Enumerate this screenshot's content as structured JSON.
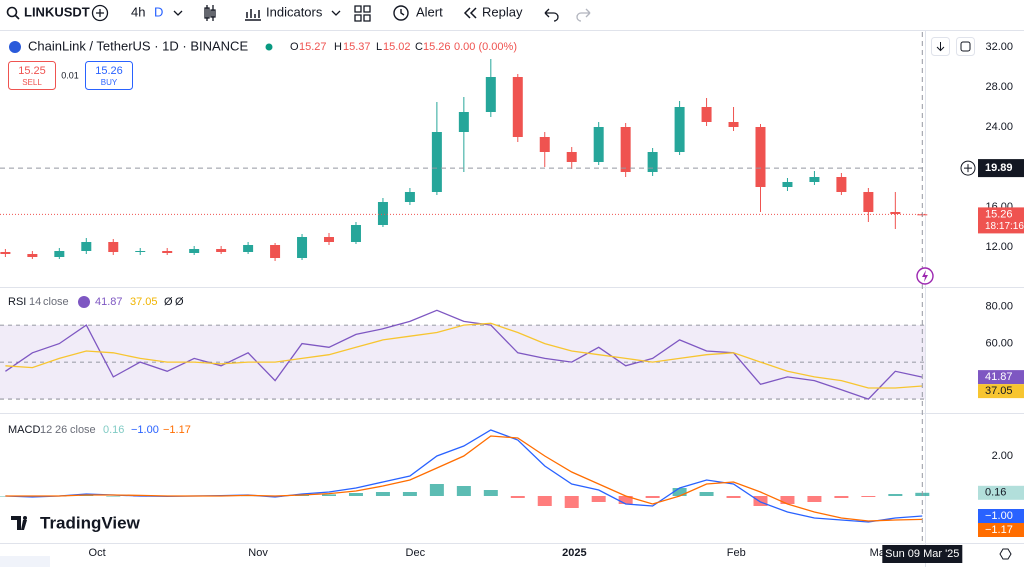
{
  "toolbar": {
    "symbol": "LINKUSDT",
    "interval": "4h",
    "interval_alt": "D",
    "indicators": "Indicators",
    "alert": "Alert",
    "replay": "Replay"
  },
  "legend": {
    "title": "ChainLink / TetherUS · 1D · BINANCE",
    "o": "O",
    "h": "H",
    "l": "L",
    "c": "C",
    "change": "0.00 (0.00%)"
  },
  "trade": {
    "sell_price": "15.25",
    "sell": "SELL",
    "spread": "0.01",
    "buy_price": "15.26",
    "buy": "BUY"
  },
  "watermark": "TradingView",
  "crosshair": {
    "price": 19.89,
    "date": "Sun 09 Mar '25"
  },
  "chart_data": [
    {
      "type": "candlestick",
      "countdown": "18:17:16",
      "up_color": "#26a69a",
      "down_color": "#ef5350",
      "xlim": [
        -0.2,
        34.1
      ],
      "xticks": [
        {
          "value": 3.4,
          "label": "Oct"
        },
        {
          "value": 9.37,
          "label": "Nov"
        },
        {
          "value": 15.2,
          "label": "Dec"
        },
        {
          "value": 21.1,
          "label": "2025"
        },
        {
          "value": 27.1,
          "label": "Feb"
        },
        {
          "value": 32.4,
          "label": "Mar"
        }
      ],
      "ylim": [
        8.2,
        33.5
      ],
      "yticks": [
        {
          "value": 32,
          "label": "32.00"
        },
        {
          "value": 28,
          "label": "28.00"
        },
        {
          "value": 24,
          "label": "24.00"
        },
        {
          "value": 16,
          "label": "16.00"
        },
        {
          "value": 12,
          "label": "12.00"
        }
      ],
      "grid": false,
      "open": [
        11.5,
        11.3,
        11.0,
        11.6,
        12.5,
        11.5,
        11.6,
        11.4,
        11.8,
        11.5,
        12.2,
        10.9,
        13.0,
        12.5,
        14.2,
        16.5,
        17.5,
        23.5,
        25.5,
        29.0,
        23.0,
        21.5,
        20.5,
        24.0,
        19.5,
        21.5,
        26.0,
        24.5,
        24.0,
        18.0,
        18.5,
        19.0,
        17.5,
        15.5,
        15.27
      ],
      "high": [
        11.8,
        11.6,
        11.9,
        12.9,
        12.8,
        11.9,
        11.9,
        12.1,
        12.1,
        12.5,
        12.4,
        13.3,
        13.4,
        14.5,
        16.9,
        17.9,
        26.5,
        27.0,
        30.8,
        29.3,
        23.5,
        22.0,
        24.5,
        24.4,
        21.9,
        26.6,
        26.9,
        26.0,
        24.3,
        18.9,
        19.6,
        19.4,
        17.9,
        17.5,
        15.37
      ],
      "low": [
        11.0,
        10.8,
        10.8,
        11.3,
        11.2,
        11.2,
        11.2,
        11.2,
        11.3,
        11.3,
        10.6,
        10.7,
        12.2,
        12.3,
        14.0,
        16.2,
        17.2,
        19.5,
        25.0,
        22.5,
        20.0,
        19.8,
        20.2,
        19.0,
        19.1,
        21.2,
        24.1,
        23.6,
        15.5,
        17.6,
        18.2,
        17.2,
        14.5,
        13.8,
        15.02
      ],
      "close": [
        11.3,
        11.0,
        11.6,
        12.5,
        11.5,
        11.6,
        11.4,
        11.8,
        11.5,
        12.2,
        10.9,
        13.0,
        12.5,
        14.2,
        16.5,
        17.5,
        23.5,
        25.5,
        29.0,
        23.0,
        21.5,
        20.5,
        24.0,
        19.5,
        21.5,
        26.0,
        24.5,
        24.0,
        18.0,
        18.5,
        19.0,
        17.5,
        15.5,
        15.3,
        15.26
      ]
    },
    {
      "type": "line",
      "title": "RSI",
      "length": "14",
      "source": "close",
      "na1": "Ø",
      "na2": "Ø",
      "ylim": [
        23,
        89
      ],
      "yticks": [
        {
          "value": 80,
          "label": "80.00"
        },
        {
          "value": 60,
          "label": "60.00"
        }
      ],
      "bands": [
        70,
        50,
        30
      ],
      "band_color": "#ede7f6",
      "series": [
        {
          "name": "RSI",
          "color": "#7e57c2",
          "values": [
            45,
            55,
            60,
            70,
            42,
            50,
            45,
            52,
            48,
            55,
            40,
            60,
            58,
            65,
            68,
            72,
            78,
            72,
            70,
            55,
            52,
            50,
            58,
            48,
            52,
            62,
            56,
            55,
            38,
            42,
            40,
            35,
            30,
            45,
            41.87
          ]
        },
        {
          "name": "RSI-based MA",
          "color": "#f7c530",
          "values": [
            48,
            47,
            52,
            56,
            55,
            52,
            50,
            50,
            49,
            50,
            50,
            52,
            54,
            58,
            62,
            64,
            66,
            70,
            71,
            66,
            60,
            56,
            54,
            52,
            50,
            52,
            54,
            55,
            50,
            45,
            42,
            40,
            36,
            36,
            37.05
          ]
        }
      ]
    },
    {
      "type": "macd",
      "title": "MACD",
      "fast": "12",
      "slow": "26",
      "source": "close",
      "ylim": [
        -2.2,
        4.05
      ],
      "yticks": [
        {
          "value": 2,
          "label": "2.00"
        }
      ],
      "hist_up_color": "#26a69a",
      "hist_down_color": "#ff5252",
      "histogram": [
        0.0,
        -0.05,
        0.0,
        0.05,
        0.0,
        -0.03,
        -0.02,
        0.0,
        0.02,
        0.02,
        -0.05,
        0.05,
        0.08,
        0.15,
        0.2,
        0.2,
        0.6,
        0.5,
        0.3,
        -0.1,
        -0.5,
        -0.6,
        -0.3,
        -0.4,
        -0.1,
        0.4,
        0.2,
        -0.1,
        -0.5,
        -0.4,
        -0.3,
        -0.1,
        -0.05,
        0.1,
        0.16
      ],
      "series": [
        {
          "name": "MACD",
          "color": "#2962ff",
          "values": [
            0.0,
            -0.05,
            0.0,
            0.1,
            0.05,
            0.0,
            -0.02,
            0.0,
            0.02,
            0.05,
            -0.05,
            0.1,
            0.2,
            0.4,
            0.7,
            1.0,
            2.0,
            2.5,
            3.3,
            2.8,
            1.5,
            0.6,
            0.3,
            -0.4,
            -0.5,
            0.4,
            0.8,
            0.6,
            -0.3,
            -0.8,
            -1.1,
            -1.2,
            -1.3,
            -1.1,
            -1.0
          ]
        },
        {
          "name": "Signal",
          "color": "#ff6d00",
          "values": [
            0.0,
            0.0,
            0.0,
            0.05,
            0.05,
            0.03,
            0.0,
            0.0,
            0.0,
            0.03,
            0.0,
            0.05,
            0.12,
            0.25,
            0.5,
            0.8,
            1.4,
            2.0,
            3.0,
            2.9,
            2.0,
            1.2,
            0.6,
            0.0,
            -0.4,
            0.0,
            0.6,
            0.7,
            0.2,
            -0.4,
            -0.8,
            -1.1,
            -1.25,
            -1.2,
            -1.17
          ]
        }
      ],
      "labels": {
        "hist": "0.16",
        "macd": "−1.00",
        "signal": "−1.17"
      }
    }
  ]
}
